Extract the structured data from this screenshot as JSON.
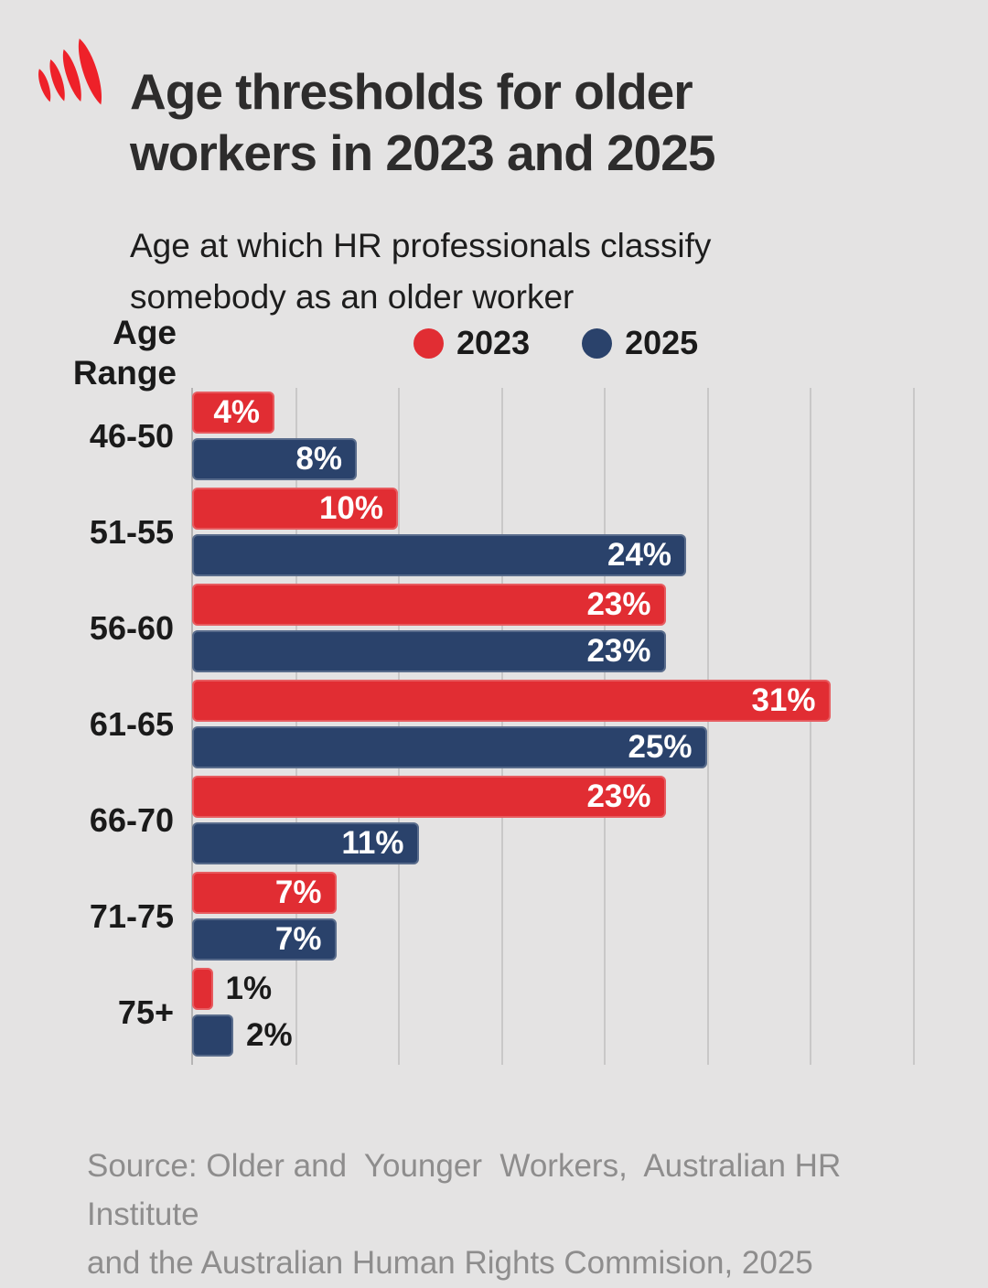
{
  "brand": {
    "logo_icon": "sbs-mercury-logo",
    "logo_color": "#ee2129"
  },
  "header": {
    "title": "Age thresholds for older\nworkers in 2023 and 2025",
    "subtitle": "Age at which HR professionals classify\nsomebody as an older worker"
  },
  "chart_data": {
    "type": "bar",
    "orientation": "horizontal",
    "title": "Age thresholds for older workers in 2023 and 2025",
    "ylabel": "Age\nRange",
    "categories": [
      "46-50",
      "51-55",
      "56-60",
      "61-65",
      "66-70",
      "71-75",
      "75+"
    ],
    "series": [
      {
        "name": "2023",
        "color": "#e12d33",
        "values": [
          4,
          10,
          23,
          31,
          23,
          7,
          1
        ]
      },
      {
        "name": "2025",
        "color": "#2a426b",
        "values": [
          8,
          24,
          23,
          25,
          11,
          7,
          2
        ]
      }
    ],
    "value_suffix": "%",
    "xlim": [
      0,
      37.33
    ],
    "grid": {
      "step": 5,
      "max": 35,
      "color": "#c9c8c8",
      "visible": true
    },
    "legend_position": "top",
    "inside_label_min_value": 3,
    "label_color_inside": "#ffffff",
    "label_color_outside": "#1a1a1a"
  },
  "theme": {
    "background": "#e4e3e3",
    "title_color": "#2d2c2c",
    "text_color": "#1a1a1a",
    "axis_color": "#b6b5b5",
    "source_color": "#8e8d8d"
  },
  "footer": {
    "source": "Source: Older and  Younger  Workers,  Australian HR Institute\nand the Australian Human Rights Commision, 2025"
  }
}
